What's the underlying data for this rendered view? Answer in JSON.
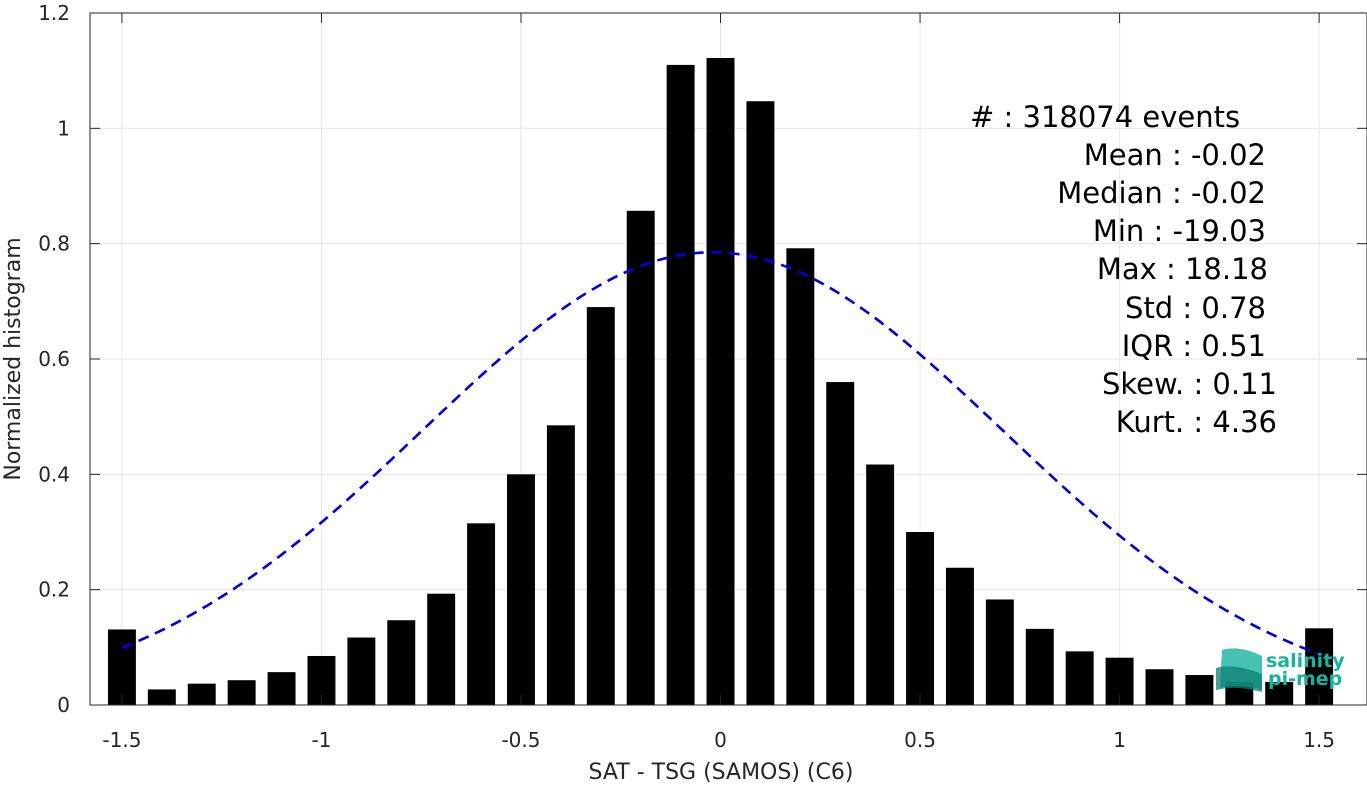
{
  "chart_data": {
    "type": "bar",
    "xlabel": "SAT - TSG (SAMOS) (C6)",
    "ylabel": "Normalized histogram",
    "xlim": [
      -1.58,
      1.62
    ],
    "ylim": [
      0,
      1.2
    ],
    "grid": true,
    "x_ticks": [
      -1.5,
      -1,
      -0.5,
      0,
      0.5,
      1,
      1.5
    ],
    "x_tick_labels": [
      "-1.5",
      "-1",
      "-0.5",
      "0",
      "0.5",
      "1",
      "1.5"
    ],
    "y_ticks": [
      0,
      0.2,
      0.4,
      0.6,
      0.8,
      1,
      1.2
    ],
    "y_tick_labels": [
      "0",
      "0.2",
      "0.4",
      "0.6",
      "0.8",
      "1",
      "1.2"
    ],
    "bar_width": 0.07,
    "bar_color": "#000000",
    "series": [
      {
        "x": [
          -1.5,
          -1.4,
          -1.3,
          -1.2,
          -1.1,
          -1.0,
          -0.9,
          -0.8,
          -0.7,
          -0.6,
          -0.5,
          -0.4,
          -0.3,
          -0.2,
          -0.1,
          0.0,
          0.1,
          0.2,
          0.3,
          0.4,
          0.5,
          0.6,
          0.7,
          0.8,
          0.9,
          1.0,
          1.1,
          1.2,
          1.3,
          1.4,
          1.5
        ],
        "values": [
          0.131,
          0.027,
          0.037,
          0.043,
          0.057,
          0.085,
          0.117,
          0.147,
          0.193,
          0.315,
          0.4,
          0.485,
          0.69,
          0.857,
          1.11,
          1.122,
          1.047,
          0.792,
          0.56,
          0.417,
          0.3,
          0.238,
          0.183,
          0.132,
          0.093,
          0.082,
          0.062,
          0.052,
          0.04,
          0.04,
          0.133
        ]
      }
    ],
    "fit_curve": {
      "type": "gaussian",
      "style": "dashed",
      "color": "#0000dd",
      "mean": -0.02,
      "std": 0.78,
      "peak": 0.785,
      "x_range": [
        -1.5,
        1.5
      ]
    },
    "annotations": [
      "#  : 318074 events",
      "Mean : -0.02",
      "Median : -0.02",
      "Min : -19.03",
      "Max : 18.18",
      "Std : 0.78",
      "IQR : 0.51",
      "Skew. : 0.11",
      "Kurt. : 4.36"
    ]
  },
  "logo": {
    "line1": "salinity",
    "line2": "pi-mep",
    "color": "#17b3a0"
  }
}
